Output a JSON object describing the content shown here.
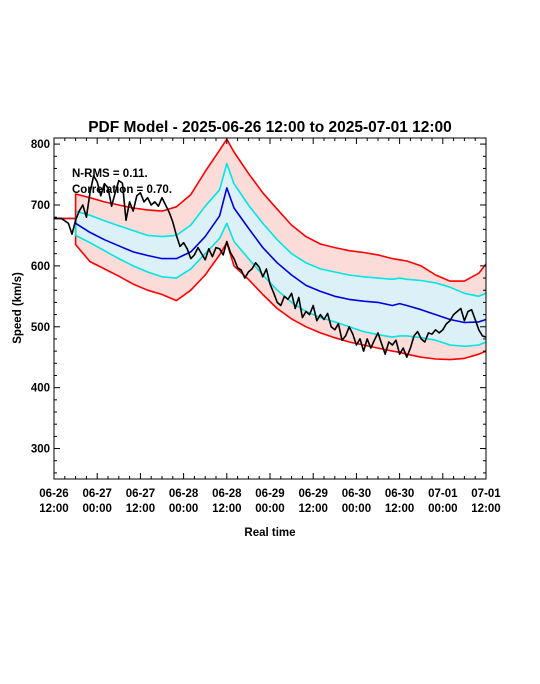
{
  "chart_data": {
    "type": "line",
    "title": "PDF Model - 2025-06-26 12:00 to 2025-07-01 12:00",
    "xlabel": "Real time",
    "ylabel": "Speed (km/s)",
    "xlim": [
      0,
      120
    ],
    "ylim": [
      250,
      810
    ],
    "yticks": [
      300,
      400,
      500,
      600,
      700,
      800
    ],
    "xticks": [
      {
        "hours": 0,
        "line1": "06-26",
        "line2": "12:00"
      },
      {
        "hours": 12,
        "line1": "06-27",
        "line2": "00:00"
      },
      {
        "hours": 24,
        "line1": "06-27",
        "line2": "12:00"
      },
      {
        "hours": 36,
        "line1": "06-28",
        "line2": "00:00"
      },
      {
        "hours": 48,
        "line1": "06-28",
        "line2": "12:00"
      },
      {
        "hours": 60,
        "line1": "06-29",
        "line2": "00:00"
      },
      {
        "hours": 72,
        "line1": "06-29",
        "line2": "12:00"
      },
      {
        "hours": 84,
        "line1": "06-30",
        "line2": "00:00"
      },
      {
        "hours": 96,
        "line1": "06-30",
        "line2": "12:00"
      },
      {
        "hours": 108,
        "line1": "07-01",
        "line2": "00:00"
      },
      {
        "hours": 120,
        "line1": "07-01",
        "line2": "12:00"
      }
    ],
    "annotations": [
      "N-RMS = 0.11.",
      "Correlation = 0.70."
    ],
    "model_x": [
      0,
      6,
      6,
      10,
      14,
      18,
      22,
      26,
      30,
      34,
      38,
      42,
      46,
      48,
      50,
      54,
      58,
      62,
      66,
      70,
      74,
      78,
      82,
      86,
      90,
      94,
      96,
      98,
      102,
      106,
      110,
      114,
      118,
      120
    ],
    "series": [
      {
        "color": "#ff0000",
        "values": [
          678,
          678,
          635,
          607,
          595,
          583,
          570,
          560,
          553,
          543,
          560,
          585,
          618,
          638,
          600,
          578,
          553,
          530,
          513,
          500,
          490,
          482,
          475,
          470,
          465,
          460,
          458,
          455,
          450,
          447,
          446,
          448,
          455,
          460
        ]
      },
      {
        "color": "#00e5e5",
        "values": [
          678,
          678,
          650,
          638,
          625,
          612,
          600,
          590,
          582,
          580,
          595,
          620,
          645,
          670,
          640,
          612,
          585,
          560,
          540,
          525,
          515,
          508,
          500,
          492,
          487,
          483,
          485,
          485,
          482,
          478,
          470,
          468,
          470,
          475
        ]
      },
      {
        "color": "#0000dd",
        "values": [
          678,
          678,
          670,
          655,
          643,
          633,
          623,
          617,
          612,
          612,
          623,
          648,
          682,
          728,
          695,
          662,
          630,
          605,
          585,
          568,
          558,
          550,
          545,
          542,
          540,
          535,
          538,
          535,
          528,
          520,
          512,
          507,
          508,
          512
        ]
      },
      {
        "color": "#00e5e5",
        "values": [
          678,
          678,
          690,
          683,
          674,
          666,
          658,
          650,
          648,
          650,
          667,
          698,
          725,
          768,
          735,
          700,
          670,
          643,
          620,
          605,
          595,
          590,
          585,
          582,
          580,
          578,
          580,
          578,
          576,
          572,
          565,
          555,
          550,
          555
        ]
      },
      {
        "color": "#ff0000",
        "values": [
          678,
          678,
          718,
          712,
          705,
          700,
          695,
          692,
          690,
          697,
          717,
          755,
          790,
          808,
          787,
          752,
          720,
          693,
          667,
          648,
          636,
          630,
          625,
          622,
          618,
          612,
          610,
          608,
          600,
          585,
          575,
          575,
          588,
          603
        ]
      }
    ],
    "observed": {
      "color": "#000000",
      "x": [
        0,
        2,
        4,
        5,
        6,
        7,
        8,
        9,
        10,
        11,
        12,
        13,
        14,
        15,
        16,
        17,
        18,
        19,
        20,
        21,
        22,
        23,
        24,
        25,
        26,
        27,
        28,
        29,
        30,
        31,
        32,
        33,
        34,
        35,
        36,
        37,
        38,
        39,
        40,
        41,
        42,
        43,
        44,
        45,
        46,
        47,
        48,
        49,
        50,
        51,
        52,
        53,
        54,
        55,
        56,
        57,
        58,
        59,
        60,
        61,
        62,
        63,
        64,
        65,
        66,
        67,
        68,
        69,
        70,
        71,
        72,
        73,
        74,
        75,
        76,
        77,
        78,
        79,
        80,
        81,
        82,
        83,
        84,
        85,
        86,
        87,
        88,
        89,
        90,
        91,
        92,
        93,
        94,
        95,
        96,
        97,
        98,
        99,
        100,
        101,
        102,
        103,
        104,
        105,
        106,
        107,
        108,
        109,
        110,
        111,
        112,
        113,
        114,
        115,
        116,
        117,
        118,
        119,
        120
      ],
      "y": [
        678,
        678,
        670,
        652,
        675,
        690,
        700,
        680,
        720,
        748,
        738,
        715,
        735,
        728,
        698,
        720,
        740,
        736,
        675,
        705,
        690,
        715,
        720,
        705,
        712,
        700,
        705,
        698,
        712,
        700,
        688,
        672,
        650,
        632,
        638,
        628,
        612,
        618,
        630,
        620,
        610,
        628,
        615,
        630,
        628,
        618,
        640,
        622,
        612,
        597,
        593,
        580,
        590,
        595,
        605,
        598,
        582,
        595,
        570,
        556,
        540,
        535,
        550,
        545,
        555,
        530,
        548,
        515,
        525,
        520,
        535,
        510,
        520,
        512,
        522,
        500,
        495,
        505,
        478,
        485,
        500,
        488,
        470,
        480,
        460,
        480,
        465,
        478,
        490,
        472,
        455,
        475,
        470,
        478,
        455,
        465,
        450,
        465,
        485,
        492,
        480,
        475,
        490,
        488,
        495,
        490,
        495,
        505,
        510,
        520,
        525,
        530,
        510,
        525,
        528,
        512,
        495,
        485,
        483
      ]
    }
  }
}
